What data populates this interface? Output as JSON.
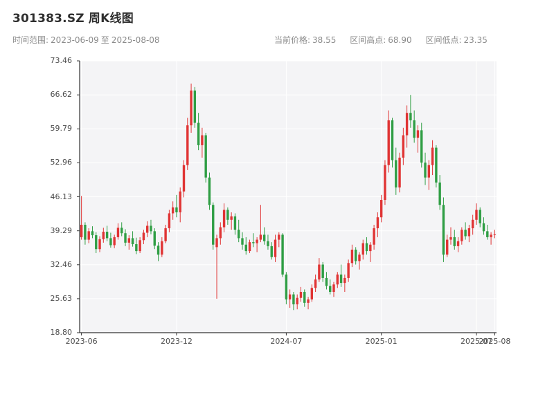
{
  "header": {
    "title": "301383.SZ 周K线图",
    "time_range": {
      "label": "时间范围:",
      "start": "2023-06-09",
      "separator": "至",
      "end": "2025-08-08"
    },
    "stats": [
      {
        "label": "当前价格:",
        "value": "38.55"
      },
      {
        "label": "区间高点:",
        "value": "68.90"
      },
      {
        "label": "区间低点:",
        "value": "23.35"
      }
    ]
  },
  "chart_data": {
    "type": "candlestick",
    "title": "301383.SZ 周K线图",
    "symbol": "301383.SZ",
    "period": "周K",
    "start_date": "2023-06-09",
    "end_date": "2025-08-08",
    "current_price": 38.55,
    "range_high": 68.9,
    "range_low": 23.35,
    "ylim": [
      18.8,
      73.46
    ],
    "y_ticks": [
      "73.46",
      "66.62",
      "59.79",
      "52.96",
      "46.13",
      "39.29",
      "32.46",
      "25.63",
      "18.80"
    ],
    "x_ticks": [
      {
        "label": "2023-06",
        "index": 0
      },
      {
        "label": "2023-12",
        "index": 26
      },
      {
        "label": "2024-07",
        "index": 56
      },
      {
        "label": "2025-01",
        "index": 82
      },
      {
        "label": "2025-07",
        "index": 108
      },
      {
        "label": "2025-08",
        "index": 113
      }
    ],
    "up_color": "#e03434",
    "down_color": "#2f9e44",
    "plot_bg": "#f4f4f6",
    "grid_color": "#ffffff",
    "axis_color": "#333333",
    "ohlc_format": [
      "open",
      "high",
      "low",
      "close"
    ],
    "ohlc": [
      [
        38.0,
        46.3,
        37.5,
        40.5
      ],
      [
        40.5,
        41.0,
        36.5,
        37.5
      ],
      [
        37.5,
        39.8,
        36.8,
        39.2
      ],
      [
        39.2,
        40.2,
        37.8,
        38.4
      ],
      [
        38.4,
        39.0,
        34.8,
        35.6
      ],
      [
        35.6,
        38.2,
        35.0,
        37.6
      ],
      [
        37.6,
        39.9,
        36.9,
        39.1
      ],
      [
        39.1,
        40.3,
        37.2,
        37.8
      ],
      [
        37.8,
        38.9,
        35.9,
        36.4
      ],
      [
        36.4,
        38.5,
        35.8,
        38.0
      ],
      [
        38.0,
        40.8,
        37.5,
        39.9
      ],
      [
        39.9,
        41.0,
        38.2,
        38.8
      ],
      [
        38.8,
        39.6,
        36.2,
        36.9
      ],
      [
        36.9,
        38.4,
        35.5,
        37.8
      ],
      [
        37.8,
        39.2,
        36.1,
        36.6
      ],
      [
        36.6,
        37.9,
        34.6,
        35.2
      ],
      [
        35.2,
        38.0,
        34.8,
        37.4
      ],
      [
        37.4,
        39.5,
        36.6,
        38.9
      ],
      [
        38.9,
        41.2,
        38.0,
        40.3
      ],
      [
        40.3,
        41.5,
        38.6,
        39.2
      ],
      [
        39.2,
        39.8,
        35.6,
        36.3
      ],
      [
        36.3,
        37.0,
        33.2,
        34.5
      ],
      [
        34.5,
        38.0,
        34.0,
        37.2
      ],
      [
        37.2,
        40.5,
        36.8,
        39.8
      ],
      [
        39.8,
        43.5,
        39.0,
        42.8
      ],
      [
        42.8,
        45.2,
        41.5,
        44.0
      ],
      [
        44.0,
        46.5,
        42.0,
        43.0
      ],
      [
        43.0,
        48.0,
        41.0,
        47.2
      ],
      [
        47.2,
        53.5,
        46.0,
        52.5
      ],
      [
        52.5,
        62.0,
        51.5,
        60.5
      ],
      [
        60.5,
        68.9,
        59.0,
        67.5
      ],
      [
        67.5,
        68.2,
        60.0,
        61.0
      ],
      [
        61.0,
        63.0,
        55.5,
        56.5
      ],
      [
        56.5,
        60.0,
        54.0,
        58.5
      ],
      [
        58.5,
        59.0,
        49.0,
        50.0
      ],
      [
        50.0,
        51.0,
        43.5,
        44.5
      ],
      [
        44.5,
        45.0,
        35.5,
        36.5
      ],
      [
        36.0,
        38.5,
        25.63,
        37.8
      ],
      [
        37.8,
        41.0,
        36.5,
        40.0
      ],
      [
        40.0,
        44.8,
        39.0,
        43.5
      ],
      [
        43.5,
        44.0,
        40.5,
        41.5
      ],
      [
        41.5,
        43.0,
        39.5,
        42.2
      ],
      [
        42.2,
        42.8,
        38.5,
        39.5
      ],
      [
        39.5,
        41.5,
        37.0,
        37.8
      ],
      [
        37.8,
        39.0,
        35.5,
        36.5
      ],
      [
        36.5,
        38.0,
        34.5,
        35.2
      ],
      [
        35.2,
        37.5,
        34.8,
        37.0
      ],
      [
        37.0,
        38.8,
        36.0,
        36.8
      ],
      [
        36.8,
        38.0,
        35.0,
        37.5
      ],
      [
        37.5,
        44.5,
        37.0,
        38.5
      ],
      [
        38.5,
        40.0,
        36.5,
        37.2
      ],
      [
        37.2,
        38.5,
        35.5,
        36.2
      ],
      [
        36.2,
        37.0,
        33.5,
        34.0
      ],
      [
        34.0,
        38.5,
        33.0,
        37.5
      ],
      [
        37.5,
        39.0,
        36.0,
        38.5
      ],
      [
        38.5,
        38.8,
        30.0,
        30.5
      ],
      [
        30.5,
        31.0,
        24.5,
        25.5
      ],
      [
        25.5,
        27.5,
        23.8,
        26.5
      ],
      [
        26.5,
        27.0,
        23.35,
        24.5
      ],
      [
        24.5,
        26.5,
        23.5,
        25.8
      ],
      [
        25.8,
        28.0,
        25.0,
        27.0
      ],
      [
        27.0,
        27.5,
        24.0,
        24.8
      ],
      [
        24.8,
        26.0,
        23.5,
        25.5
      ],
      [
        25.5,
        28.5,
        25.0,
        27.8
      ],
      [
        27.8,
        30.5,
        27.0,
        29.5
      ],
      [
        29.5,
        33.8,
        29.0,
        32.5
      ],
      [
        32.5,
        33.0,
        29.0,
        29.8
      ],
      [
        29.8,
        31.0,
        27.5,
        28.2
      ],
      [
        28.2,
        29.5,
        26.5,
        27.0
      ],
      [
        27.0,
        29.0,
        26.0,
        28.5
      ],
      [
        28.5,
        31.0,
        27.8,
        30.5
      ],
      [
        30.5,
        32.5,
        28.0,
        28.8
      ],
      [
        28.8,
        30.5,
        27.0,
        29.8
      ],
      [
        29.8,
        33.5,
        29.0,
        32.8
      ],
      [
        32.8,
        36.5,
        32.0,
        35.5
      ],
      [
        35.5,
        36.0,
        32.5,
        33.2
      ],
      [
        33.2,
        35.0,
        31.5,
        34.5
      ],
      [
        34.5,
        37.5,
        33.5,
        36.8
      ],
      [
        36.8,
        38.0,
        34.5,
        35.2
      ],
      [
        35.2,
        37.0,
        33.0,
        36.5
      ],
      [
        36.5,
        40.5,
        35.5,
        39.8
      ],
      [
        39.8,
        43.0,
        38.0,
        42.0
      ],
      [
        42.0,
        46.5,
        41.0,
        45.5
      ],
      [
        45.5,
        53.5,
        44.5,
        52.5
      ],
      [
        52.5,
        63.5,
        51.0,
        61.5
      ],
      [
        61.5,
        62.0,
        52.0,
        53.5
      ],
      [
        53.5,
        56.0,
        46.5,
        48.0
      ],
      [
        48.0,
        55.0,
        47.0,
        54.0
      ],
      [
        54.0,
        60.0,
        52.5,
        58.5
      ],
      [
        58.5,
        64.5,
        56.0,
        63.0
      ],
      [
        63.0,
        66.62,
        60.0,
        61.5
      ],
      [
        61.5,
        63.5,
        57.0,
        58.0
      ],
      [
        58.0,
        60.5,
        55.0,
        59.5
      ],
      [
        59.5,
        61.0,
        52.0,
        53.0
      ],
      [
        53.0,
        55.0,
        48.5,
        50.0
      ],
      [
        50.0,
        53.5,
        47.5,
        52.5
      ],
      [
        52.5,
        57.5,
        50.5,
        56.0
      ],
      [
        56.0,
        56.5,
        48.0,
        49.0
      ],
      [
        49.0,
        50.5,
        43.5,
        44.5
      ],
      [
        44.5,
        46.0,
        33.0,
        34.5
      ],
      [
        34.5,
        38.5,
        34.0,
        37.5
      ],
      [
        37.5,
        40.0,
        36.5,
        38.0
      ],
      [
        38.0,
        39.5,
        35.5,
        36.2
      ],
      [
        36.2,
        38.0,
        35.0,
        37.2
      ],
      [
        37.2,
        40.0,
        36.5,
        39.5
      ],
      [
        39.5,
        41.0,
        37.5,
        38.2
      ],
      [
        38.2,
        40.5,
        37.0,
        39.8
      ],
      [
        39.8,
        42.5,
        38.5,
        41.5
      ],
      [
        41.5,
        44.8,
        40.5,
        43.5
      ],
      [
        43.5,
        44.0,
        40.0,
        40.8
      ],
      [
        40.8,
        42.0,
        38.5,
        39.2
      ],
      [
        39.2,
        40.5,
        37.5,
        38.0
      ],
      [
        38.0,
        39.0,
        36.5,
        38.5
      ],
      [
        38.5,
        39.5,
        37.8,
        38.55
      ]
    ]
  }
}
